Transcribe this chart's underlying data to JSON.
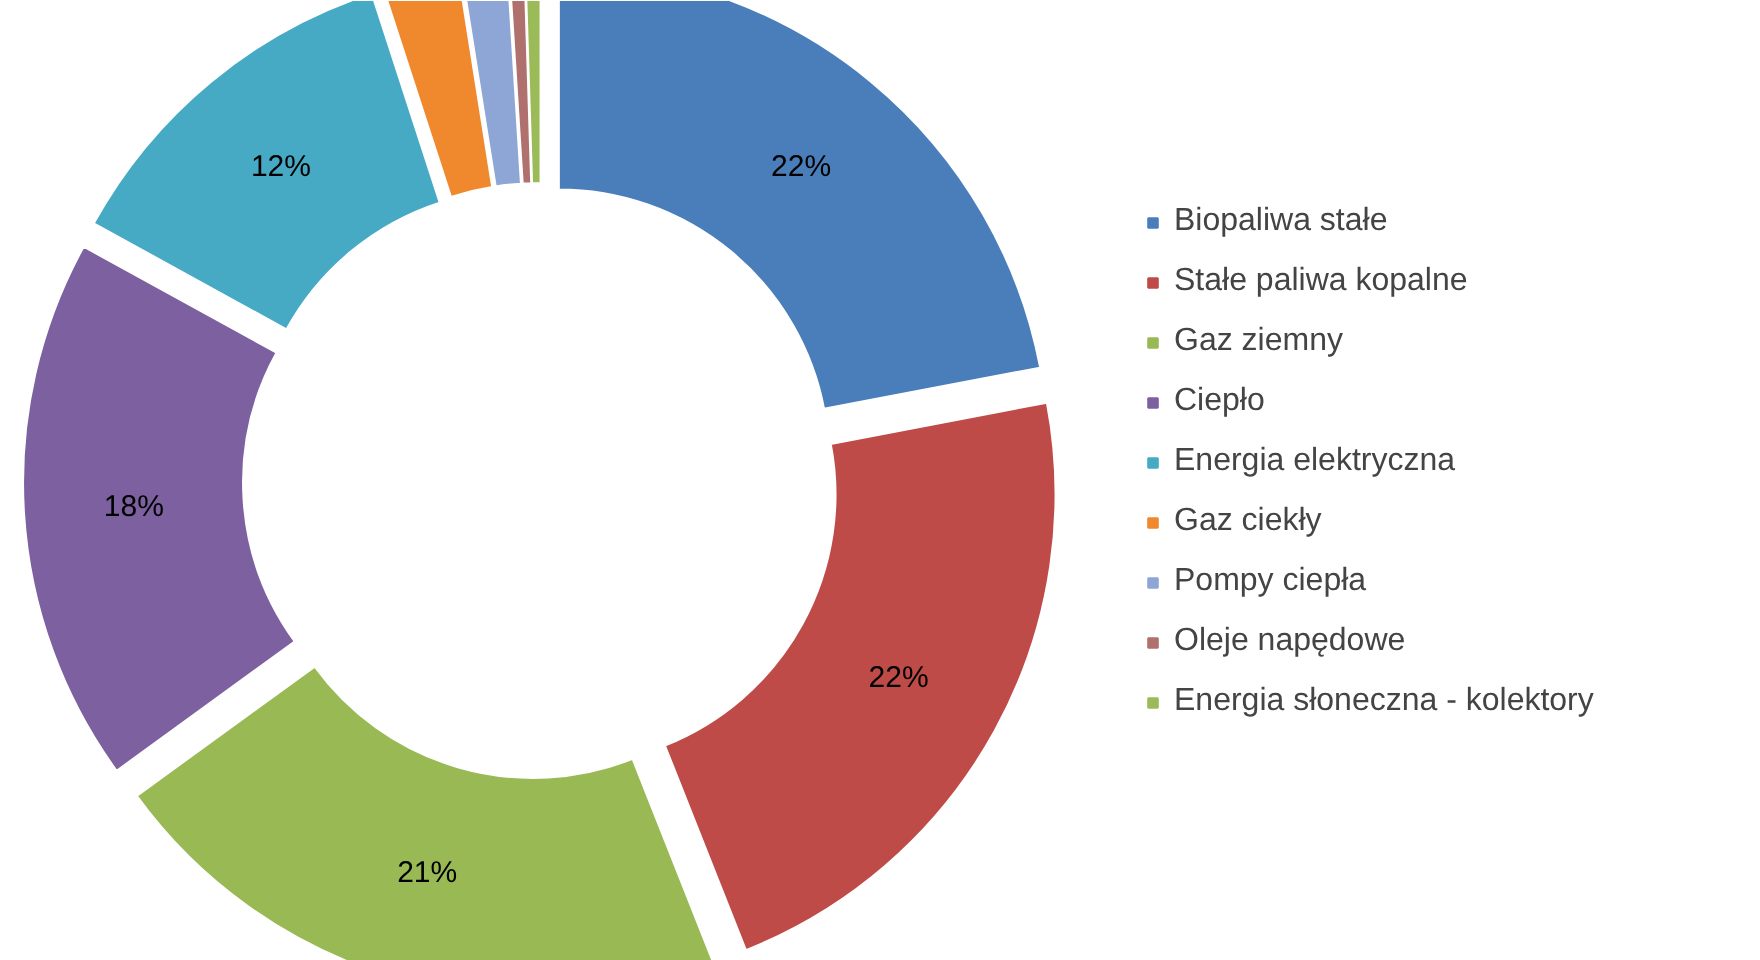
{
  "chart_data": {
    "type": "donut",
    "categories": [
      "Biopaliwa stałe",
      "Stałe paliwa kopalne",
      "Gaz ziemny",
      "Ciepło",
      "Energia elektryczna",
      "Gaz ciekły",
      "Pompy ciepła",
      "Oleje napędowe",
      "Energia słoneczna - kolektory"
    ],
    "values": [
      22,
      22,
      21,
      18,
      12,
      2.5,
      1.5,
      0.5,
      0.5
    ],
    "colors": [
      "#4a7ebb",
      "#be4b48",
      "#98b954",
      "#7d60a0",
      "#46aac5",
      "#f0892e",
      "#8ea6d6",
      "#b0706e",
      "#9bbb59"
    ],
    "value_labels": [
      "22%",
      "22%",
      "21%",
      "18%",
      "12%",
      null,
      null,
      null,
      null
    ],
    "legend": "right"
  }
}
